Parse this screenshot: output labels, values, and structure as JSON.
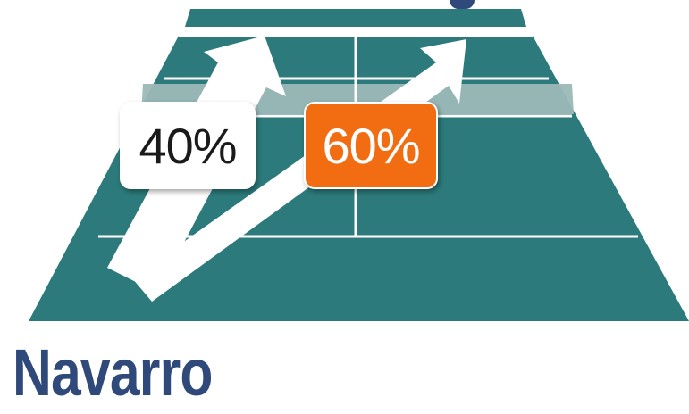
{
  "colors": {
    "court": "#2c7a7b",
    "court_line": "#ffffff",
    "highlight_band": "#9bb9b8",
    "arrow": "#ffffff",
    "box_left_bg": "#ffffff",
    "box_left_text": "#1a1a1a",
    "box_right_bg": "#f26c12",
    "box_right_text": "#ffffff",
    "name": "#2f4a7a"
  },
  "directions": [
    {
      "label": "40%",
      "value": 40,
      "side": "left"
    },
    {
      "label": "60%",
      "value": 60,
      "side": "right"
    }
  ],
  "player": {
    "name": "Navarro"
  }
}
